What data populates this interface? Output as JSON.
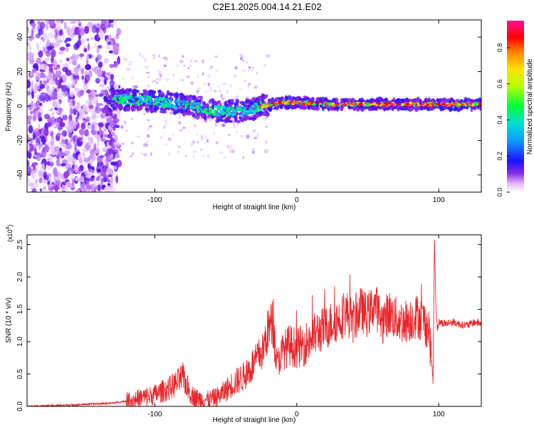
{
  "title": "C2E1.2025.004.14.21.E02",
  "chart_data": [
    {
      "type": "heatmap",
      "xlabel": "Height of straight line (km)",
      "ylabel": "Frequency (Hz)",
      "xlim": [
        -190,
        130
      ],
      "ylim": [
        -50,
        50
      ],
      "xticks": [
        -100,
        0,
        100
      ],
      "yticks": [
        -40,
        -20,
        0,
        20,
        40
      ],
      "colorbar": {
        "label": "Normalized spectral amplitude",
        "range": [
          0.0,
          0.95
        ],
        "ticks": [
          "0.0",
          "0.2",
          "0.4",
          "0.6",
          "0.8"
        ]
      },
      "ridge": [
        {
          "x": -130,
          "y": 4
        },
        {
          "x": -100,
          "y": 3
        },
        {
          "x": -75,
          "y": 0
        },
        {
          "x": -55,
          "y": -3
        },
        {
          "x": -45,
          "y": -3
        },
        {
          "x": -35,
          "y": -3
        },
        {
          "x": -25,
          "y": 0
        },
        {
          "x": -10,
          "y": 2
        },
        {
          "x": 0,
          "y": 2
        },
        {
          "x": 25,
          "y": 1
        },
        {
          "x": 50,
          "y": 1
        },
        {
          "x": 75,
          "y": 1
        },
        {
          "x": 95,
          "y": 1
        },
        {
          "x": 130,
          "y": 1
        }
      ]
    },
    {
      "type": "line",
      "xlabel": "Height of straight line (km)",
      "ylabel": "SNR (10 * v/v)",
      "yscale_label": "(x10",
      "yscale_exp": "4",
      "ylabel_unit_note": ")",
      "xlim": [
        -190,
        130
      ],
      "ylim": [
        0,
        2.65
      ],
      "xticks": [
        -100,
        0,
        100
      ],
      "yticks": [
        "0.0",
        "0.5",
        "1.0",
        "1.5",
        "2.0",
        "2.5"
      ],
      "color": "#e8262b",
      "x": [
        -190,
        -160,
        -130,
        -115,
        -100,
        -90,
        -85,
        -80,
        -75,
        -70,
        -62,
        -55,
        -50,
        -45,
        -38,
        -32,
        -28,
        -24,
        -20,
        -17,
        -14,
        -10,
        -5,
        0,
        5,
        10,
        15,
        20,
        25,
        30,
        35,
        40,
        45,
        50,
        55,
        60,
        65,
        70,
        75,
        80,
        85,
        90,
        93,
        95,
        96,
        97,
        98,
        99,
        100,
        105,
        110,
        115,
        120,
        125,
        130
      ],
      "values": [
        0.0,
        0.02,
        0.05,
        0.1,
        0.18,
        0.28,
        0.35,
        0.45,
        0.2,
        0.12,
        0.1,
        0.15,
        0.25,
        0.35,
        0.45,
        0.6,
        0.75,
        0.85,
        1.2,
        1.3,
        0.65,
        0.85,
        0.95,
        0.9,
        0.95,
        1.05,
        1.15,
        1.2,
        1.3,
        1.35,
        1.45,
        1.3,
        1.5,
        1.4,
        1.6,
        1.3,
        1.45,
        1.35,
        1.3,
        1.35,
        1.4,
        1.3,
        1.2,
        0.7,
        0.4,
        2.6,
        1.6,
        1.2,
        1.3,
        1.28,
        1.3,
        1.27,
        1.25,
        1.3,
        1.28
      ]
    }
  ]
}
